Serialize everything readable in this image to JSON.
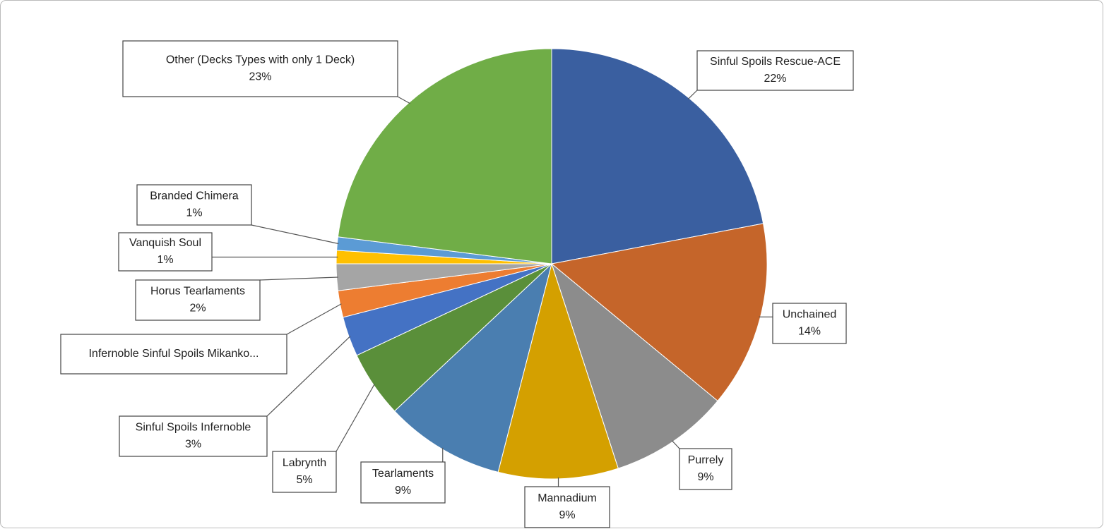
{
  "chart_data": {
    "type": "pie",
    "categories": [
      "Sinful Spoils Rescue-ACE",
      "Unchained",
      "Purrely",
      "Mannadium",
      "Tearlaments",
      "Labrynth",
      "Sinful Spoils Infernoble",
      "Infernoble Sinful Spoils Mikanko...",
      "Horus Tearlaments",
      "Vanquish Soul",
      "Branded Chimera",
      "Other (Decks Types with only 1 Deck)"
    ],
    "values": [
      22,
      14,
      9,
      9,
      9,
      5,
      3,
      2,
      2,
      1,
      1,
      23
    ],
    "value_labels": [
      "22%",
      "14%",
      "9%",
      "9%",
      "9%",
      "5%",
      "3%",
      null,
      "2%",
      "1%",
      "1%",
      "23%"
    ],
    "colors": [
      "#3a5fa0",
      "#c5652a",
      "#8c8c8c",
      "#d4a000",
      "#4a7eb0",
      "#5a8f3a",
      "#4472c4",
      "#ed7d31",
      "#a5a5a5",
      "#ffc000",
      "#5b9bd5",
      "#70ad47"
    ]
  }
}
